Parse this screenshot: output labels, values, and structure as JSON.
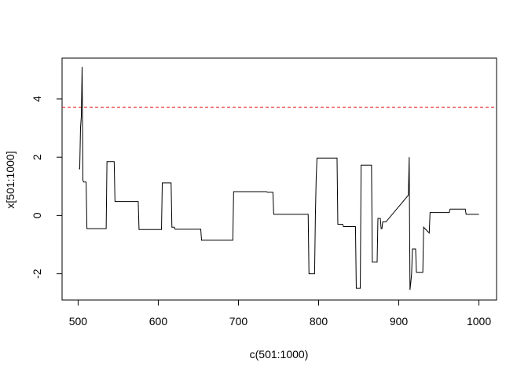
{
  "chart_data": {
    "type": "line",
    "title": "",
    "xlabel": "c(501:1000)",
    "ylabel": "x[501:1000]",
    "xlim": [
      480,
      1022
    ],
    "ylim": [
      -2.9,
      5.4
    ],
    "x_ticks": [
      500,
      600,
      700,
      800,
      900,
      1000
    ],
    "y_ticks": [
      -2,
      0,
      2,
      4
    ],
    "grid": false,
    "line_color": "#000000",
    "threshold": {
      "value": 3.72,
      "color": "#e41a1c",
      "style": "dashed"
    },
    "series": [
      {
        "x": [
          501,
          502,
          503,
          504,
          505,
          506,
          507,
          508,
          510,
          511,
          535,
          536,
          545,
          546,
          575,
          576,
          604,
          605,
          616,
          617,
          620,
          621,
          653,
          654,
          693,
          694,
          735,
          736,
          743,
          744,
          787,
          788,
          795,
          796,
          797,
          798,
          823,
          824,
          830,
          831,
          846,
          847,
          852,
          853,
          866,
          867,
          873,
          874,
          877,
          878,
          879,
          880,
          883,
          884,
          912,
          913,
          914,
          915,
          916,
          917,
          921,
          922,
          930,
          931,
          938,
          939,
          941,
          942,
          963,
          964,
          983,
          984,
          1000
        ],
        "y": [
          1.6,
          1.6,
          3.0,
          3.4,
          5.1,
          1.2,
          1.15,
          1.15,
          1.15,
          -0.45,
          -0.45,
          1.85,
          1.85,
          0.48,
          0.48,
          -0.48,
          -0.48,
          1.12,
          1.12,
          -0.4,
          -0.4,
          -0.47,
          -0.47,
          -0.85,
          -0.85,
          0.82,
          0.82,
          0.8,
          0.8,
          0.04,
          0.04,
          -2.0,
          -2.0,
          0.0,
          1.3,
          1.97,
          1.97,
          -0.3,
          -0.3,
          -0.38,
          -0.38,
          -2.5,
          -2.5,
          1.73,
          1.73,
          -1.6,
          -1.6,
          -0.1,
          -0.1,
          -0.45,
          -0.45,
          -0.22,
          -0.22,
          -0.22,
          0.7,
          2.0,
          -2.55,
          -2.3,
          -2.0,
          -1.15,
          -1.15,
          -1.95,
          -1.95,
          -0.4,
          -0.6,
          0.1,
          0.1,
          0.1,
          0.1,
          0.22,
          0.22,
          0.04,
          0.04
        ]
      }
    ]
  }
}
